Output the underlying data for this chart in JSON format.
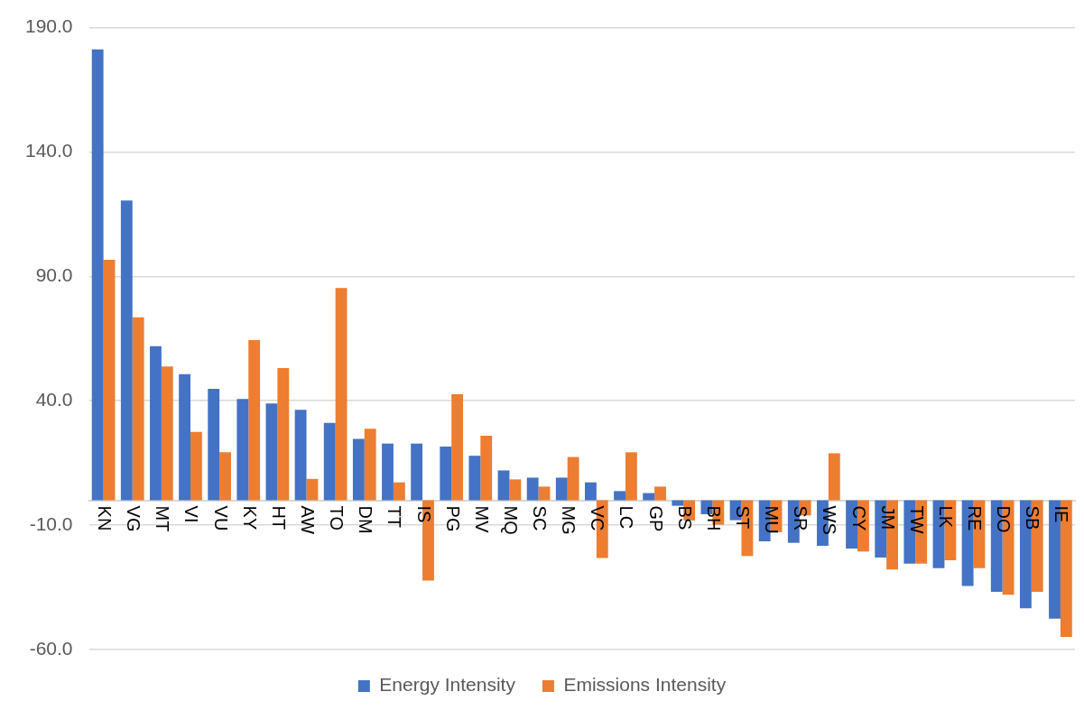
{
  "chart_data": {
    "type": "bar",
    "categories": [
      "KN",
      "VG",
      "MT",
      "VI",
      "VU",
      "KY",
      "HT",
      "AW",
      "TO",
      "DM",
      "TT",
      "IS",
      "PG",
      "MV",
      "MQ",
      "SC",
      "MG",
      "VC",
      "LC",
      "GP",
      "BS",
      "BH",
      "ST",
      "MU",
      "SR",
      "WS",
      "CY",
      "JM",
      "TW",
      "LK",
      "RE",
      "DO",
      "SB",
      "IE"
    ],
    "series": [
      {
        "name": "Energy Intensity",
        "color": "#4472c4",
        "values": [
          181.2,
          120.5,
          61.9,
          50.7,
          44.8,
          40.7,
          38.9,
          36.4,
          31.1,
          24.7,
          22.8,
          22.8,
          21.6,
          17.9,
          12.0,
          9.1,
          9.1,
          7.2,
          3.7,
          2.9,
          -2.2,
          -5.6,
          -8.0,
          -16.5,
          -17.1,
          -18.3,
          -19.4,
          -23.0,
          -25.5,
          -27.3,
          -34.4,
          -36.8,
          -43.4,
          -47.6
        ]
      },
      {
        "name": "Emissions Intensity",
        "color": "#ed7d31",
        "values": [
          96.7,
          73.5,
          53.8,
          27.5,
          19.3,
          64.4,
          53.1,
          8.6,
          85.3,
          28.8,
          7.2,
          -32.3,
          42.6,
          25.9,
          8.4,
          5.5,
          17.4,
          -23.2,
          19.3,
          5.5,
          -8.1,
          -9.8,
          -22.4,
          -12.8,
          -6.1,
          18.9,
          -20.6,
          -27.8,
          -25.5,
          -24.1,
          -27.3,
          -38.0,
          -36.8,
          -54.9
        ]
      }
    ],
    "ylim": [
      -60,
      190
    ],
    "yticks": [
      {
        "value": 190,
        "label": "190.0"
      },
      {
        "value": 140,
        "label": "140.0"
      },
      {
        "value": 90,
        "label": "90.0"
      },
      {
        "value": 40,
        "label": "40.0"
      },
      {
        "value": -10,
        "label": "-10.0"
      },
      {
        "value": -60,
        "label": "-60.0"
      }
    ],
    "grid": "y",
    "legend": "bottom"
  }
}
